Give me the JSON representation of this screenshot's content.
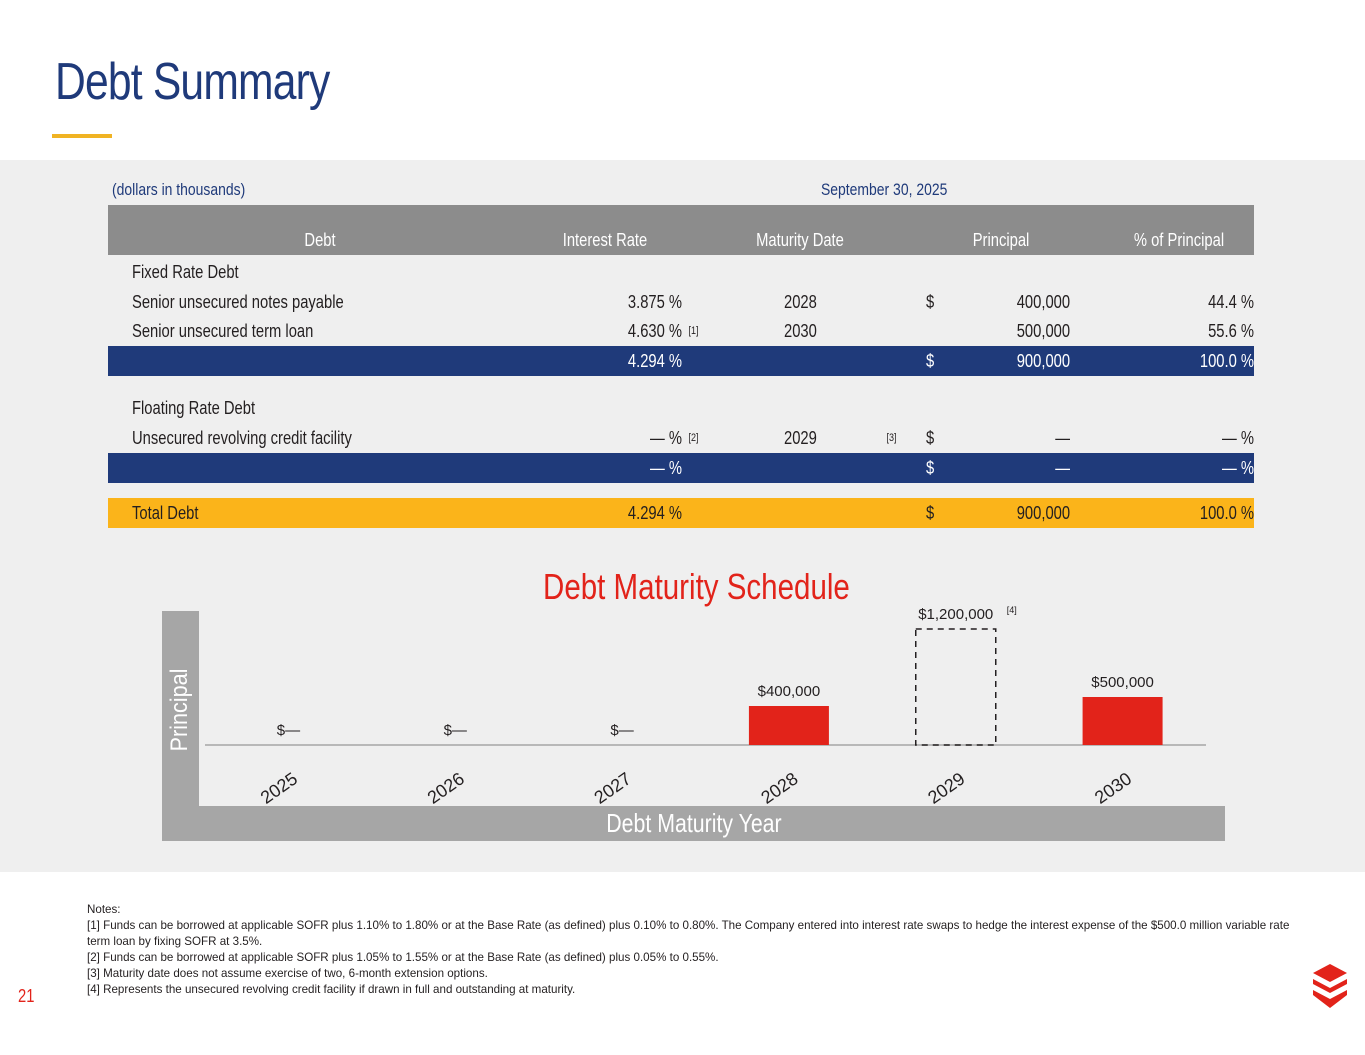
{
  "page": {
    "title": "Debt Summary",
    "page_number": "21"
  },
  "table": {
    "units": "(dollars in thousands)",
    "as_of": "September 30, 2025",
    "headers": {
      "debt": "Debt",
      "interest_rate": "Interest Rate",
      "maturity_date": "Maturity Date",
      "principal": "Principal",
      "pct_principal": "% of Principal"
    },
    "fixed": {
      "section_label": "Fixed Rate Debt",
      "rows": [
        {
          "name": "Senior unsecured notes payable",
          "rate": "3.875 %",
          "rate_note": "",
          "maturity": "2028",
          "maturity_note": "",
          "currency": "$",
          "principal": "400,000",
          "pct": "44.4 %"
        },
        {
          "name": "Senior unsecured term loan",
          "rate": "4.630 %",
          "rate_note": "[1]",
          "maturity": "2030",
          "maturity_note": "",
          "currency": "",
          "principal": "500,000",
          "pct": "55.6 %"
        }
      ],
      "subtotal": {
        "rate": "4.294 %",
        "currency": "$",
        "principal": "900,000",
        "pct": "100.0 %"
      }
    },
    "floating": {
      "section_label": "Floating Rate Debt",
      "rows": [
        {
          "name": "Unsecured revolving credit facility",
          "rate": "— %",
          "rate_note": "[2]",
          "maturity": "2029",
          "maturity_note": "[3]",
          "currency": "$",
          "principal": "—",
          "pct": "— %"
        }
      ],
      "subtotal": {
        "rate": "— %",
        "currency": "$",
        "principal": "—",
        "pct": "— %"
      }
    },
    "total": {
      "label": "Total Debt",
      "rate": "4.294 %",
      "currency": "$",
      "principal": "900,000",
      "pct": "100.0 %"
    }
  },
  "chart_data": {
    "type": "bar",
    "title": "Debt Maturity Schedule",
    "xlabel": "Debt Maturity Year",
    "ylabel": "Principal",
    "categories": [
      "2025",
      "2026",
      "2027",
      "2028",
      "2029",
      "2030"
    ],
    "values": [
      0,
      0,
      0,
      400000,
      1200000,
      500000
    ],
    "value_labels": [
      "$—",
      "$—",
      "$—",
      "$400,000",
      "$1,200,000",
      "$500,000"
    ],
    "value_notes": [
      "",
      "",
      "",
      "",
      "[4]",
      ""
    ],
    "bar_styles": [
      "solid",
      "solid",
      "solid",
      "solid",
      "dashed-outline",
      "solid"
    ],
    "bar_color": "#e2231a",
    "ylim": [
      0,
      1200000
    ]
  },
  "notes": {
    "heading": "Notes:",
    "items": [
      "[1] Funds can be borrowed at applicable SOFR plus 1.10% to 1.80% or at the Base Rate (as defined) plus 0.10% to 0.80%.  The Company entered into interest rate swaps to hedge the interest expense of the $500.0 million variable rate term loan by fixing SOFR at 3.5%.",
      "[2] Funds can be borrowed at applicable SOFR plus 1.05% to 1.55% or at the Base Rate (as defined) plus 0.05% to 0.55%.",
      "[3] Maturity date does not assume exercise of two, 6-month extension options.",
      "[4] Represents the unsecured revolving credit facility if drawn in full and outstanding at maturity."
    ]
  },
  "colors": {
    "navy": "#1f3a7a",
    "gold": "#fbb41a",
    "red": "#e2231a",
    "gray_header": "#8c8c8c"
  },
  "logo": {
    "icon": "company-logo-icon"
  }
}
